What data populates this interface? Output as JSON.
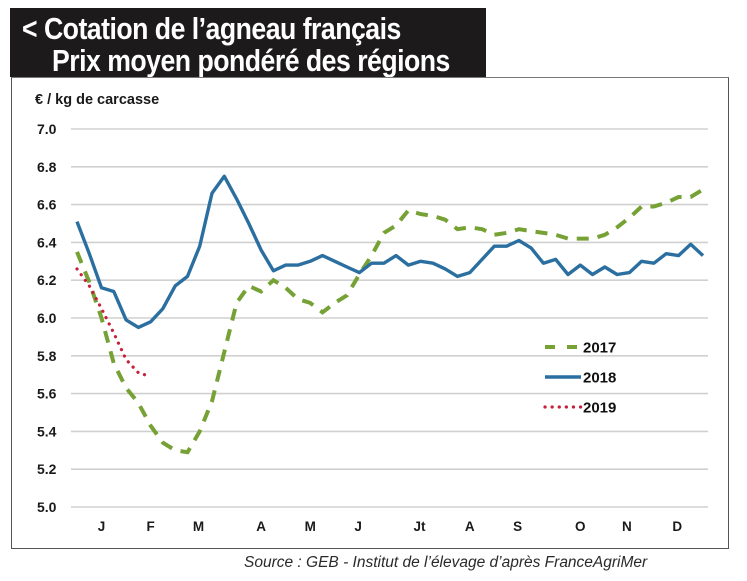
{
  "header": {
    "title_line1": "< Cotation de l’agneau français",
    "title_line2": "Prix moyen pondéré des régions"
  },
  "source": "Source : GEB - Institut de l’élevage d’après FranceAgriMer",
  "chart_data": {
    "type": "line",
    "title": "Cotation de l’agneau français — Prix moyen pondéré des régions",
    "ylabel": "€ / kg de carcasse",
    "xlabel": "",
    "ylim": [
      5.0,
      7.0
    ],
    "yticks": [
      "7.0",
      "6.8",
      "6.6",
      "6.4",
      "6.2",
      "6.0",
      "5.8",
      "5.6",
      "5.4",
      "5.2",
      "5.0"
    ],
    "xlim": [
      1,
      52
    ],
    "x_unit": "week",
    "month_ticks": [
      {
        "label": "J",
        "week": 3.0
      },
      {
        "label": "F",
        "week": 7.0
      },
      {
        "label": "M",
        "week": 10.9
      },
      {
        "label": "A",
        "week": 16.0
      },
      {
        "label": "M",
        "week": 20.0
      },
      {
        "label": "J",
        "week": 23.9
      },
      {
        "label": "Jt",
        "week": 28.9
      },
      {
        "label": "A",
        "week": 33.0
      },
      {
        "label": "S",
        "week": 36.9
      },
      {
        "label": "O",
        "week": 42.0
      },
      {
        "label": "N",
        "week": 45.8
      },
      {
        "label": "D",
        "week": 49.9
      }
    ],
    "grid": true,
    "legend_position": "center-right",
    "series": [
      {
        "name": "2017",
        "style": "dashed",
        "color": "#76a135",
        "points": [
          [
            1,
            6.35
          ],
          [
            2,
            6.19
          ],
          [
            3,
            6.0
          ],
          [
            4,
            5.76
          ],
          [
            5,
            5.63
          ],
          [
            6,
            5.55
          ],
          [
            7,
            5.43
          ],
          [
            8,
            5.34
          ],
          [
            9,
            5.3
          ],
          [
            10,
            5.29
          ],
          [
            11,
            5.4
          ],
          [
            12,
            5.56
          ],
          [
            13,
            5.82
          ],
          [
            14,
            6.08
          ],
          [
            15,
            6.17
          ],
          [
            16,
            6.14
          ],
          [
            17,
            6.2
          ],
          [
            18,
            6.16
          ],
          [
            19,
            6.1
          ],
          [
            20,
            6.08
          ],
          [
            21,
            6.03
          ],
          [
            22,
            6.08
          ],
          [
            23,
            6.12
          ],
          [
            24,
            6.23
          ],
          [
            25,
            6.33
          ],
          [
            26,
            6.45
          ],
          [
            27,
            6.49
          ],
          [
            28,
            6.57
          ],
          [
            29,
            6.55
          ],
          [
            30,
            6.54
          ],
          [
            31,
            6.52
          ],
          [
            32,
            6.47
          ],
          [
            33,
            6.48
          ],
          [
            34,
            6.47
          ],
          [
            35,
            6.44
          ],
          [
            36,
            6.45
          ],
          [
            37,
            6.47
          ],
          [
            38,
            6.46
          ],
          [
            39,
            6.45
          ],
          [
            40,
            6.44
          ],
          [
            41,
            6.42
          ],
          [
            42,
            6.42
          ],
          [
            43,
            6.42
          ],
          [
            44,
            6.44
          ],
          [
            45,
            6.48
          ],
          [
            46,
            6.53
          ],
          [
            47,
            6.59
          ],
          [
            48,
            6.59
          ],
          [
            49,
            6.61
          ],
          [
            50,
            6.64
          ],
          [
            51,
            6.64
          ],
          [
            52,
            6.68
          ]
        ]
      },
      {
        "name": "2018",
        "style": "solid",
        "color": "#2a6fa0",
        "points": [
          [
            1,
            6.51
          ],
          [
            2,
            6.34
          ],
          [
            3,
            6.16
          ],
          [
            4,
            6.14
          ],
          [
            5,
            5.99
          ],
          [
            6,
            5.95
          ],
          [
            7,
            5.98
          ],
          [
            8,
            6.05
          ],
          [
            9,
            6.17
          ],
          [
            10,
            6.22
          ],
          [
            11,
            6.38
          ],
          [
            12,
            6.66
          ],
          [
            13,
            6.75
          ],
          [
            14,
            6.63
          ],
          [
            15,
            6.5
          ],
          [
            16,
            6.36
          ],
          [
            17,
            6.25
          ],
          [
            18,
            6.28
          ],
          [
            19,
            6.28
          ],
          [
            20,
            6.3
          ],
          [
            21,
            6.33
          ],
          [
            22,
            6.3
          ],
          [
            23,
            6.27
          ],
          [
            24,
            6.24
          ],
          [
            25,
            6.29
          ],
          [
            26,
            6.29
          ],
          [
            27,
            6.33
          ],
          [
            28,
            6.28
          ],
          [
            29,
            6.3
          ],
          [
            30,
            6.29
          ],
          [
            31,
            6.26
          ],
          [
            32,
            6.22
          ],
          [
            33,
            6.24
          ],
          [
            34,
            6.31
          ],
          [
            35,
            6.38
          ],
          [
            36,
            6.38
          ],
          [
            37,
            6.41
          ],
          [
            38,
            6.37
          ],
          [
            39,
            6.29
          ],
          [
            40,
            6.31
          ],
          [
            41,
            6.23
          ],
          [
            42,
            6.28
          ],
          [
            43,
            6.23
          ],
          [
            44,
            6.27
          ],
          [
            45,
            6.23
          ],
          [
            46,
            6.24
          ],
          [
            47,
            6.3
          ],
          [
            48,
            6.29
          ],
          [
            49,
            6.34
          ],
          [
            50,
            6.33
          ],
          [
            51,
            6.39
          ],
          [
            52,
            6.33
          ]
        ]
      },
      {
        "name": "2019",
        "style": "dotted",
        "color": "#c8203a",
        "points": [
          [
            1,
            6.26
          ],
          [
            2,
            6.17
          ],
          [
            3,
            6.05
          ],
          [
            4,
            5.92
          ],
          [
            5,
            5.78
          ],
          [
            6,
            5.71
          ],
          [
            6.5,
            5.7
          ]
        ]
      }
    ]
  },
  "colors": {
    "title_bg": "#1c1a1a",
    "grid": "#d0d0d0",
    "axis_text": "#1a1a1a"
  }
}
